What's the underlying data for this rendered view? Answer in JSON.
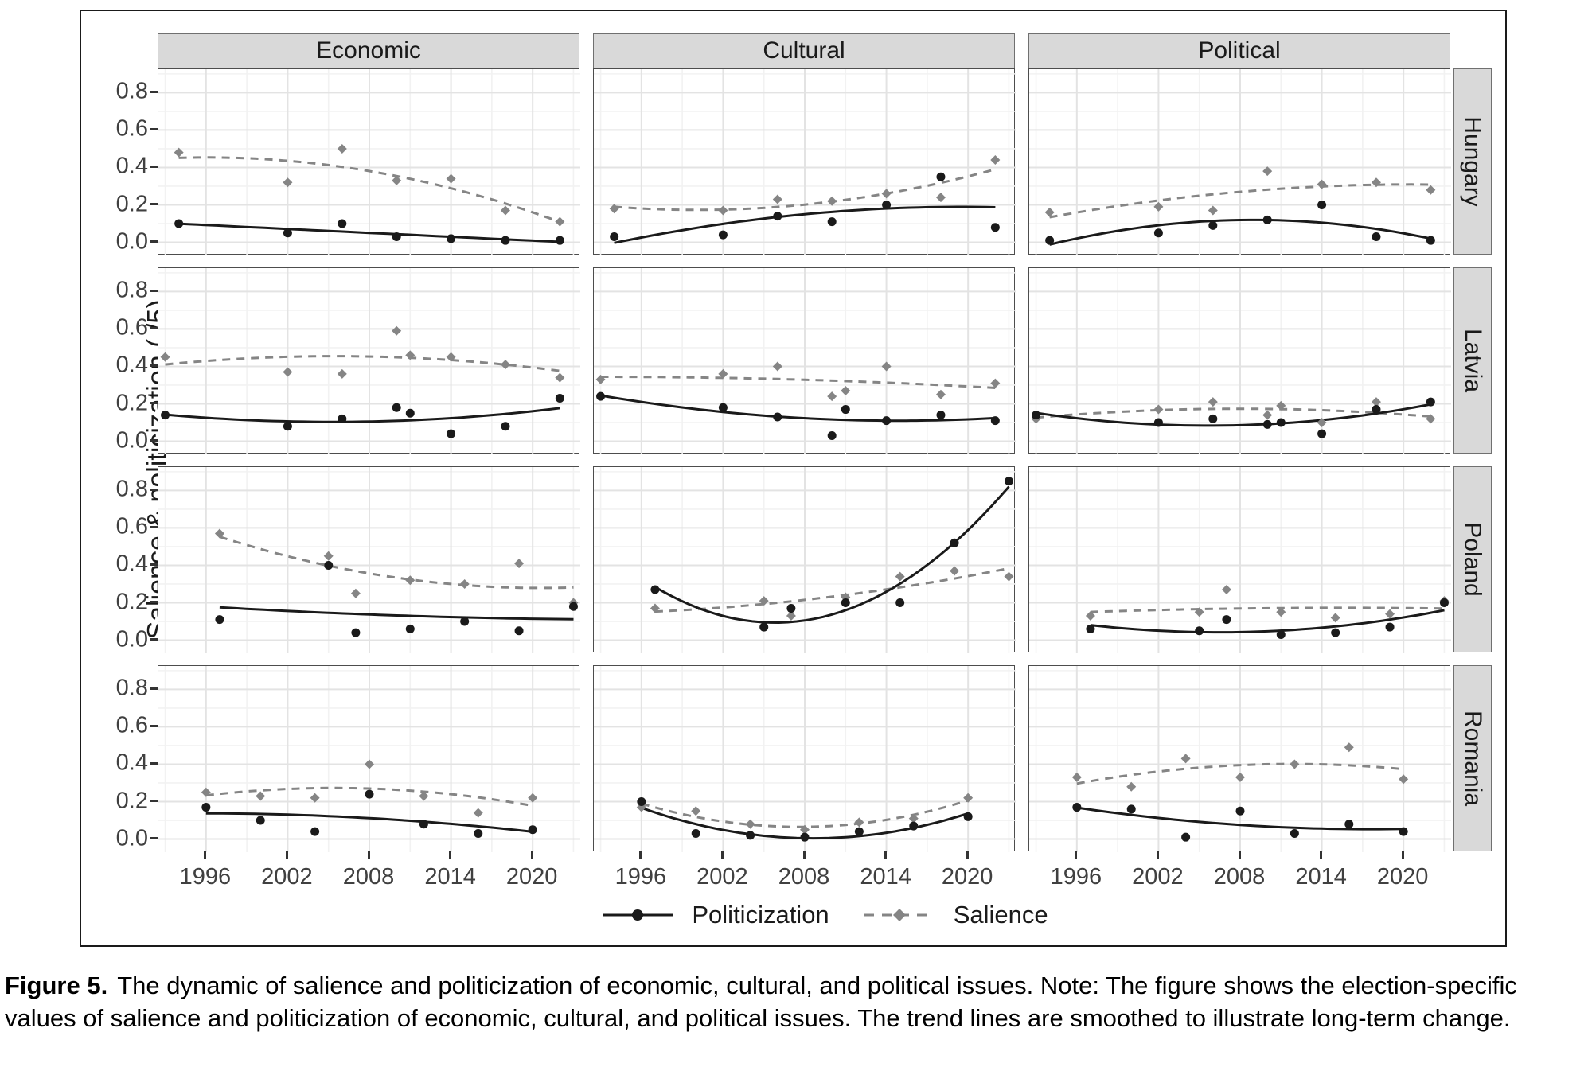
{
  "caption": {
    "label": "Figure 5.",
    "text": "The dynamic of salience and politicization of economic, cultural, and political issues. Note: The figure shows the election-specific values of salience and politicization of economic, cultural, and political issues. The trend lines are smoothed to illustrate long-term change."
  },
  "chart_data": {
    "type": "scatter",
    "title": "",
    "xlabel": "",
    "ylabel": "Salience & politicization (./5)",
    "grid": "on",
    "legend_position": "bottom",
    "x_ticks": [
      1996,
      2002,
      2008,
      2014,
      2020
    ],
    "y_ticks": [
      0.0,
      0.2,
      0.4,
      0.6,
      0.8
    ],
    "x_range": [
      1992.5,
      2023.5
    ],
    "y_range": [
      -0.07,
      0.925
    ],
    "columns": [
      "Economic",
      "Cultural",
      "Political"
    ],
    "rows": [
      "Hungary",
      "Latvia",
      "Poland",
      "Romania"
    ],
    "legend": {
      "politicization_label": "Politicization",
      "salience_label": "Salience"
    },
    "colors": {
      "politicization": "#1a1a1a",
      "salience": "#858585"
    },
    "facets": [
      {
        "row": "Hungary",
        "col": "Economic",
        "years": [
          1994,
          2002,
          2006,
          2010,
          2014,
          2018,
          2022
        ],
        "politicization": [
          0.1,
          0.05,
          0.1,
          0.03,
          0.02,
          0.01,
          0.01
        ],
        "salience": [
          0.48,
          0.32,
          0.5,
          0.33,
          0.34,
          0.17,
          0.11
        ]
      },
      {
        "row": "Hungary",
        "col": "Cultural",
        "years": [
          1994,
          2002,
          2006,
          2010,
          2014,
          2018,
          2022
        ],
        "politicization": [
          0.03,
          0.04,
          0.14,
          0.11,
          0.2,
          0.35,
          0.08
        ],
        "salience": [
          0.18,
          0.17,
          0.23,
          0.22,
          0.26,
          0.24,
          0.44
        ]
      },
      {
        "row": "Hungary",
        "col": "Political",
        "years": [
          1994,
          2002,
          2006,
          2010,
          2014,
          2018,
          2022
        ],
        "politicization": [
          0.01,
          0.05,
          0.09,
          0.12,
          0.2,
          0.03,
          0.01
        ],
        "salience": [
          0.16,
          0.19,
          0.17,
          0.38,
          0.31,
          0.32,
          0.28
        ]
      },
      {
        "row": "Latvia",
        "col": "Economic",
        "years": [
          1993,
          2002,
          2006,
          2010,
          2011,
          2014,
          2018,
          2022
        ],
        "politicization": [
          0.14,
          0.08,
          0.12,
          0.18,
          0.15,
          0.04,
          0.08,
          0.23
        ],
        "salience": [
          0.45,
          0.37,
          0.36,
          0.59,
          0.46,
          0.45,
          0.41,
          0.34
        ]
      },
      {
        "row": "Latvia",
        "col": "Cultural",
        "years": [
          1993,
          2002,
          2006,
          2010,
          2011,
          2014,
          2018,
          2022
        ],
        "politicization": [
          0.24,
          0.18,
          0.13,
          0.03,
          0.17,
          0.11,
          0.14,
          0.11
        ],
        "salience": [
          0.33,
          0.36,
          0.4,
          0.24,
          0.27,
          0.4,
          0.25,
          0.31
        ]
      },
      {
        "row": "Latvia",
        "col": "Political",
        "years": [
          1993,
          2002,
          2006,
          2010,
          2011,
          2014,
          2018,
          2022
        ],
        "politicization": [
          0.14,
          0.1,
          0.12,
          0.09,
          0.1,
          0.04,
          0.17,
          0.21
        ],
        "salience": [
          0.12,
          0.17,
          0.21,
          0.14,
          0.19,
          0.1,
          0.21,
          0.12
        ]
      },
      {
        "row": "Poland",
        "col": "Economic",
        "years": [
          1997,
          2005,
          2007,
          2011,
          2015,
          2019,
          2023
        ],
        "politicization": [
          0.11,
          0.4,
          0.04,
          0.06,
          0.1,
          0.05,
          0.18
        ],
        "salience": [
          0.57,
          0.45,
          0.25,
          0.32,
          0.3,
          0.41,
          0.2
        ]
      },
      {
        "row": "Poland",
        "col": "Cultural",
        "years": [
          1997,
          2005,
          2007,
          2011,
          2015,
          2019,
          2023
        ],
        "politicization": [
          0.27,
          0.07,
          0.17,
          0.2,
          0.2,
          0.52,
          0.85
        ],
        "salience": [
          0.17,
          0.21,
          0.13,
          0.23,
          0.34,
          0.37,
          0.34
        ]
      },
      {
        "row": "Poland",
        "col": "Political",
        "years": [
          1997,
          2005,
          2007,
          2011,
          2015,
          2019,
          2023
        ],
        "politicization": [
          0.06,
          0.05,
          0.11,
          0.03,
          0.04,
          0.07,
          0.2
        ],
        "salience": [
          0.13,
          0.15,
          0.27,
          0.15,
          0.12,
          0.14,
          0.21
        ]
      },
      {
        "row": "Romania",
        "col": "Economic",
        "years": [
          1996,
          2000,
          2004,
          2008,
          2012,
          2016,
          2020
        ],
        "politicization": [
          0.17,
          0.1,
          0.04,
          0.24,
          0.08,
          0.03,
          0.05
        ],
        "salience": [
          0.25,
          0.23,
          0.22,
          0.4,
          0.23,
          0.14,
          0.22
        ]
      },
      {
        "row": "Romania",
        "col": "Cultural",
        "years": [
          1996,
          2000,
          2004,
          2008,
          2012,
          2016,
          2020
        ],
        "politicization": [
          0.2,
          0.03,
          0.02,
          0.01,
          0.04,
          0.07,
          0.12
        ],
        "salience": [
          0.17,
          0.15,
          0.08,
          0.05,
          0.09,
          0.11,
          0.22
        ]
      },
      {
        "row": "Romania",
        "col": "Political",
        "years": [
          1996,
          2000,
          2004,
          2008,
          2012,
          2016,
          2020
        ],
        "politicization": [
          0.17,
          0.16,
          0.01,
          0.15,
          0.03,
          0.08,
          0.04
        ],
        "salience": [
          0.33,
          0.28,
          0.43,
          0.33,
          0.4,
          0.49,
          0.32
        ]
      }
    ]
  }
}
